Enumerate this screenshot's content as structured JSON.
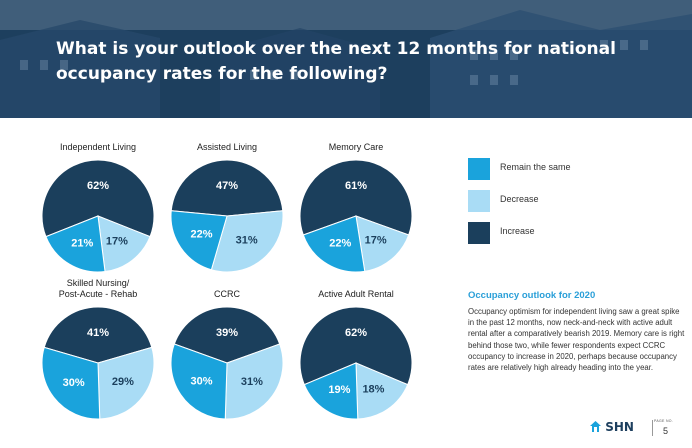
{
  "header": {
    "title": "What is your outlook over the next 12 months for national occupancy rates for the following?"
  },
  "colors": {
    "remain_same": "#1aa3dc",
    "decrease": "#a9dcf5",
    "increase": "#1b3f5c",
    "header_bg": "#1d3f5e",
    "accent": "#2a9fd8"
  },
  "legend": {
    "items": [
      {
        "key": "remain_same",
        "label": "Remain the same"
      },
      {
        "key": "decrease",
        "label": "Decrease"
      },
      {
        "key": "increase",
        "label": "Increase"
      }
    ]
  },
  "chart_data": [
    {
      "type": "pie",
      "title": "Independent Living",
      "series": [
        {
          "name": "Remain the same",
          "value": 21
        },
        {
          "name": "Decrease",
          "value": 17
        },
        {
          "name": "Increase",
          "value": 62
        }
      ]
    },
    {
      "type": "pie",
      "title": "Assisted Living",
      "series": [
        {
          "name": "Remain the same",
          "value": 22
        },
        {
          "name": "Decrease",
          "value": 31
        },
        {
          "name": "Increase",
          "value": 47
        }
      ]
    },
    {
      "type": "pie",
      "title": "Memory Care",
      "series": [
        {
          "name": "Remain the same",
          "value": 22
        },
        {
          "name": "Decrease",
          "value": 17
        },
        {
          "name": "Increase",
          "value": 61
        }
      ]
    },
    {
      "type": "pie",
      "title": "Skilled Nursing/ Post-Acute - Rehab",
      "title_lines": [
        "Skilled Nursing/",
        "Post-Acute - Rehab"
      ],
      "series": [
        {
          "name": "Remain the same",
          "value": 30
        },
        {
          "name": "Decrease",
          "value": 29
        },
        {
          "name": "Increase",
          "value": 41
        }
      ]
    },
    {
      "type": "pie",
      "title": "CCRC",
      "series": [
        {
          "name": "Remain the same",
          "value": 30
        },
        {
          "name": "Decrease",
          "value": 31
        },
        {
          "name": "Increase",
          "value": 39
        }
      ]
    },
    {
      "type": "pie",
      "title": "Active Adult Rental",
      "series": [
        {
          "name": "Remain the same",
          "value": 19
        },
        {
          "name": "Decrease",
          "value": 18
        },
        {
          "name": "Increase",
          "value": 62
        }
      ]
    }
  ],
  "info": {
    "title": "Occupancy outlook for 2020",
    "body": "Occupancy optimism for independent living saw a great spike in the past 12 months, now neck-and-neck with active adult rental after a comparatively bearish 2019. Memory care is right behind those two, while fewer respondents expect CCRC occupancy to increase in 2020, perhaps because occupancy rates are relatively high already heading into the year."
  },
  "footer": {
    "logo": "SHN",
    "page_label": "PAGE NO.",
    "page_number": "5"
  }
}
